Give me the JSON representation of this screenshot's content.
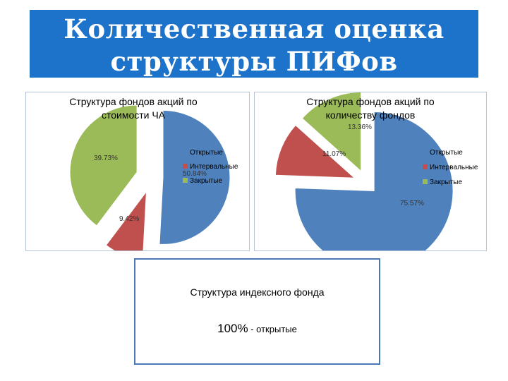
{
  "slide": {
    "title_line1": "Количественная оценка",
    "title_line2": "структуры ПИФов",
    "accent_color": "#1d72c9"
  },
  "chart_data": [
    {
      "type": "pie",
      "title": "Структура фондов акций по стоимости ЧА",
      "categories": [
        "Открытые",
        "Интервальные",
        "Закрытые"
      ],
      "values": [
        50.84,
        9.42,
        39.73
      ],
      "data_labels": [
        "50.84%",
        "9.42%",
        "39.73%"
      ],
      "colors": [
        "#4f81bd",
        "#c0504d",
        "#9bbb59"
      ],
      "exploded": true,
      "legend_position": "right"
    },
    {
      "type": "pie",
      "title": "Структура фондов акций по количеству фондов",
      "categories": [
        "Открытые",
        "Интервальные",
        "Закрытые"
      ],
      "values": [
        75.57,
        11.07,
        13.36
      ],
      "data_labels": [
        "75.57%",
        "11.07%",
        "13.36%"
      ],
      "colors": [
        "#4f81bd",
        "#c0504d",
        "#9bbb59"
      ],
      "exploded": true,
      "legend_position": "right"
    }
  ],
  "index_fund": {
    "title": "Структура индексного фонда",
    "value": "100%",
    "value_suffix": " - открытые"
  }
}
